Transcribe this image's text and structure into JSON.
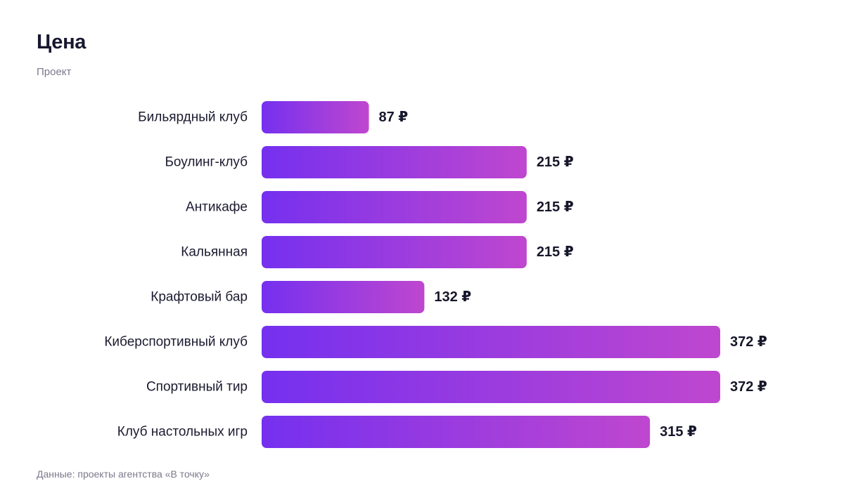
{
  "chart_data": {
    "type": "bar",
    "orientation": "horizontal",
    "title": "Цена",
    "subtitle": "Проект",
    "source": "Данные: проекты агентства «В точку»",
    "value_suffix": " ₽",
    "categories": [
      "Бильярдный клуб",
      "Боулинг-клуб",
      "Антикафе",
      "Кальянная",
      "Крафтовый бар",
      "Киберспортивный клуб",
      "Спортивный тир",
      "Клуб настольных игр"
    ],
    "values": [
      87,
      215,
      215,
      215,
      132,
      372,
      372,
      315
    ],
    "xlim": [
      0,
      372
    ],
    "grid": false,
    "legend": "none",
    "colors": {
      "bar_start": "#7530ef",
      "bar_end": "#bf47cf"
    }
  }
}
